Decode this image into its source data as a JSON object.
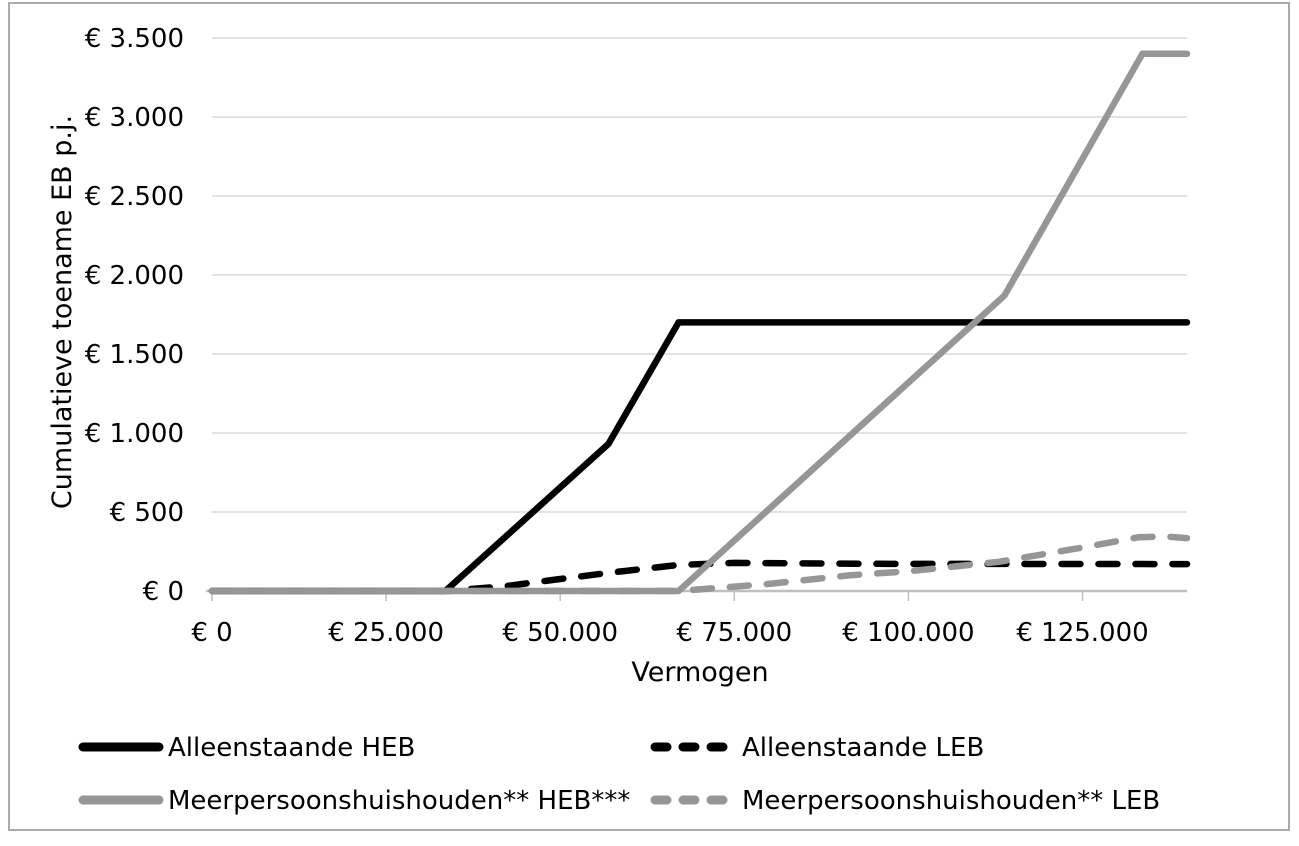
{
  "chart_data": {
    "type": "line",
    "title": "",
    "xlabel": "Vermogen",
    "ylabel": "Cumulatieve toename EB p.j.",
    "grid": "horizontal",
    "legend_position": "bottom",
    "x_axis": {
      "min": 0,
      "max": 140000,
      "ticks": [
        {
          "v": 0,
          "label": "€ 0"
        },
        {
          "v": 25000,
          "label": "€ 25.000"
        },
        {
          "v": 50000,
          "label": "€ 50.000"
        },
        {
          "v": 75000,
          "label": "€ 75.000"
        },
        {
          "v": 100000,
          "label": "€ 100.000"
        },
        {
          "v": 125000,
          "label": "€ 125.000"
        }
      ]
    },
    "y_axis": {
      "min": 0,
      "max": 3500,
      "ticks": [
        {
          "v": 0,
          "label": "€ 0"
        },
        {
          "v": 500,
          "label": "€ 500"
        },
        {
          "v": 1000,
          "label": "€ 1.000"
        },
        {
          "v": 1500,
          "label": "€ 1.500"
        },
        {
          "v": 2000,
          "label": "€ 2.000"
        },
        {
          "v": 2500,
          "label": "€ 2.500"
        },
        {
          "v": 3000,
          "label": "€ 3.000"
        },
        {
          "v": 3500,
          "label": "€ 3.500"
        }
      ]
    },
    "series": [
      {
        "name": "Alleenstaande HEB",
        "color": "#000000",
        "style": "solid",
        "points": [
          [
            0,
            0
          ],
          [
            33500,
            0
          ],
          [
            56900,
            930
          ],
          [
            67000,
            1700
          ],
          [
            140000,
            1700
          ]
        ]
      },
      {
        "name": "Alleenstaande LEB",
        "color": "#000000",
        "style": "dashed",
        "points": [
          [
            0,
            0
          ],
          [
            33500,
            0
          ],
          [
            42000,
            30
          ],
          [
            49000,
            70
          ],
          [
            57000,
            115
          ],
          [
            67000,
            165
          ],
          [
            75000,
            178
          ],
          [
            95000,
            172
          ],
          [
            140000,
            170
          ]
        ]
      },
      {
        "name": "Meerpersoonshuishouden** HEB***",
        "color": "#969696",
        "style": "solid",
        "points": [
          [
            0,
            0
          ],
          [
            67000,
            0
          ],
          [
            113800,
            1870
          ],
          [
            133600,
            3400
          ],
          [
            140000,
            3400
          ]
        ]
      },
      {
        "name": "Meerpersoonshuishouden** LEB",
        "color": "#969696",
        "style": "dashed",
        "points": [
          [
            0,
            0
          ],
          [
            67000,
            0
          ],
          [
            80000,
            45
          ],
          [
            91700,
            100
          ],
          [
            100000,
            125
          ],
          [
            113000,
            185
          ],
          [
            125000,
            275
          ],
          [
            133000,
            340
          ],
          [
            137000,
            345
          ],
          [
            140000,
            335
          ]
        ]
      }
    ],
    "colors": {
      "gridline": "#D9D9D9",
      "axis_line": "#BFBFBF",
      "figure_border": "#ABABAB",
      "background": "#FFFFFF",
      "series_black": "#000000",
      "series_gray": "#969696"
    }
  }
}
